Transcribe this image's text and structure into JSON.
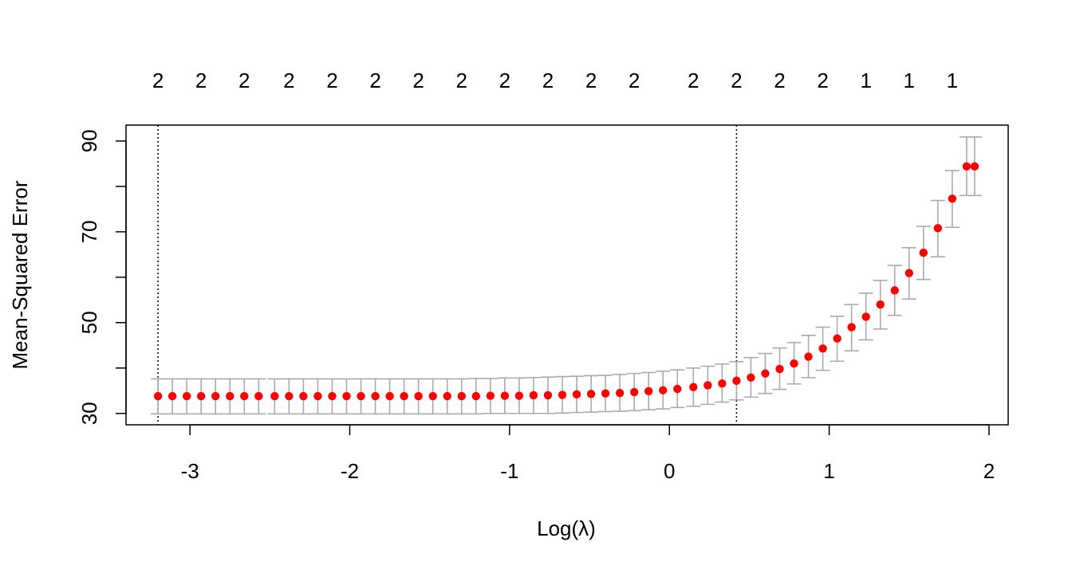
{
  "chart_data": {
    "type": "scatter",
    "title": "",
    "xlabel": "Log(λ)",
    "ylabel": "Mean-Squared Error",
    "xlim": [
      -3.4,
      2.12
    ],
    "ylim": [
      27.5,
      93.5
    ],
    "x_ticks": [
      -3,
      -2,
      -1,
      0,
      1,
      2
    ],
    "y_ticks": [
      30,
      40,
      50,
      60,
      70,
      80,
      90
    ],
    "y_tick_labels": [
      "30",
      "50",
      "70",
      "90"
    ],
    "grid": false,
    "legend": "none",
    "colors": {
      "point": "#ff0000",
      "errorbar": "#aaaaaa",
      "vline": "#000000",
      "frame": "#000000"
    },
    "series": [
      {
        "x": [
          -3.2,
          -3.11,
          -3.02,
          -2.93,
          -2.84,
          -2.75,
          -2.66,
          -2.57,
          -2.47,
          -2.38,
          -2.29,
          -2.2,
          -2.11,
          -2.02,
          -1.93,
          -1.84,
          -1.75,
          -1.66,
          -1.57,
          -1.48,
          -1.39,
          -1.3,
          -1.21,
          -1.12,
          -1.03,
          -0.94,
          -0.85,
          -0.76,
          -0.67,
          -0.58,
          -0.49,
          -0.4,
          -0.31,
          -0.22,
          -0.13,
          -0.04,
          0.05,
          0.15,
          0.24,
          0.33,
          0.42,
          0.51,
          0.6,
          0.69,
          0.78,
          0.87,
          0.96,
          1.05,
          1.14,
          1.23,
          1.32,
          1.41,
          1.5,
          1.59,
          1.68,
          1.77,
          1.86,
          1.91
        ],
        "y": [
          33.8,
          33.8,
          33.8,
          33.8,
          33.8,
          33.8,
          33.8,
          33.8,
          33.8,
          33.8,
          33.8,
          33.8,
          33.8,
          33.8,
          33.8,
          33.8,
          33.8,
          33.8,
          33.8,
          33.8,
          33.8,
          33.8,
          33.8,
          33.9,
          33.9,
          33.9,
          34.0,
          34.0,
          34.1,
          34.2,
          34.3,
          34.4,
          34.5,
          34.7,
          34.9,
          35.1,
          35.4,
          35.8,
          36.2,
          36.6,
          37.2,
          37.9,
          38.8,
          39.8,
          41.0,
          42.5,
          44.3,
          46.5,
          49.0,
          51.3,
          54.0,
          57.1,
          60.9,
          65.4,
          70.8,
          77.3,
          84.4,
          84.4
        ],
        "lower": [
          29.9,
          29.9,
          29.9,
          29.9,
          29.9,
          29.9,
          29.9,
          29.9,
          29.9,
          29.9,
          29.9,
          29.9,
          29.9,
          29.9,
          29.9,
          29.9,
          29.9,
          29.9,
          29.9,
          29.9,
          29.9,
          29.9,
          29.9,
          30.0,
          30.0,
          30.0,
          30.0,
          30.0,
          30.1,
          30.2,
          30.3,
          30.4,
          30.5,
          30.6,
          30.8,
          31.0,
          31.3,
          31.6,
          32.0,
          32.5,
          33.0,
          33.6,
          34.4,
          35.3,
          36.5,
          37.9,
          39.5,
          41.5,
          43.8,
          46.2,
          48.6,
          51.6,
          55.2,
          59.5,
          64.5,
          71.0,
          78.0,
          78.0
        ],
        "upper": [
          37.6,
          37.6,
          37.6,
          37.6,
          37.6,
          37.6,
          37.6,
          37.6,
          37.6,
          37.6,
          37.6,
          37.6,
          37.6,
          37.6,
          37.6,
          37.6,
          37.6,
          37.6,
          37.6,
          37.6,
          37.6,
          37.6,
          37.7,
          37.7,
          37.8,
          37.8,
          37.9,
          38.0,
          38.1,
          38.2,
          38.3,
          38.4,
          38.6,
          38.8,
          39.0,
          39.3,
          39.6,
          40.0,
          40.4,
          40.9,
          41.4,
          42.3,
          43.2,
          44.4,
          45.6,
          47.2,
          49.0,
          51.4,
          54.0,
          56.5,
          59.3,
          62.6,
          66.5,
          71.2,
          76.9,
          83.5,
          90.9,
          90.9
        ]
      }
    ],
    "vlines": [
      -3.2,
      0.42
    ],
    "top_axis": {
      "x": [
        -3.2,
        -2.93,
        -2.66,
        -2.38,
        -2.11,
        -1.84,
        -1.57,
        -1.3,
        -1.03,
        -0.76,
        -0.49,
        -0.22,
        0.15,
        0.42,
        0.69,
        0.96,
        1.23,
        1.5,
        1.77
      ],
      "labels": [
        "2",
        "2",
        "2",
        "2",
        "2",
        "2",
        "2",
        "2",
        "2",
        "2",
        "2",
        "2",
        "2",
        "2",
        "2",
        "2",
        "1",
        "1",
        "1"
      ]
    }
  }
}
